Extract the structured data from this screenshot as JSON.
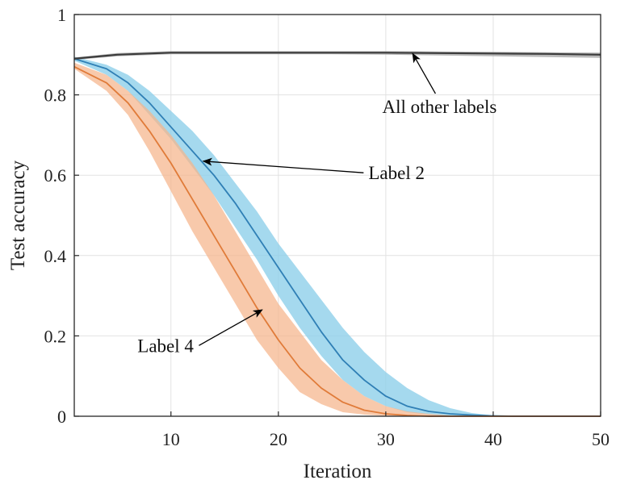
{
  "chart_data": {
    "type": "line",
    "xlabel": "Iteration",
    "ylabel": "Test accuracy",
    "xlim": [
      1,
      50
    ],
    "ylim": [
      0,
      1
    ],
    "xticks": [
      10,
      20,
      30,
      40,
      50
    ],
    "yticks": [
      0,
      0.2,
      0.4,
      0.6,
      0.8,
      1
    ],
    "xtick_labels": [
      "10",
      "20",
      "30",
      "40",
      "50"
    ],
    "ytick_labels": [
      "0",
      "0.2",
      "0.4",
      "0.6",
      "0.8",
      "1"
    ],
    "grid": true,
    "legend": "none",
    "series": [
      {
        "name": "All other labels",
        "color": "#3c3c3c",
        "band_color": "#a8a8a8",
        "x": [
          1,
          5,
          10,
          15,
          20,
          25,
          30,
          35,
          40,
          45,
          50
        ],
        "y": [
          0.89,
          0.9,
          0.905,
          0.905,
          0.905,
          0.905,
          0.905,
          0.904,
          0.903,
          0.902,
          0.9
        ],
        "lower": [
          0.887,
          0.896,
          0.901,
          0.901,
          0.901,
          0.901,
          0.9,
          0.898,
          0.896,
          0.894,
          0.892
        ],
        "upper": [
          0.893,
          0.904,
          0.909,
          0.909,
          0.909,
          0.909,
          0.909,
          0.908,
          0.907,
          0.906,
          0.905
        ]
      },
      {
        "name": "Label 2",
        "color": "#2f7fb5",
        "band_color": "#8fd0ea",
        "x": [
          1,
          4,
          6,
          8,
          10,
          12,
          14,
          16,
          18,
          20,
          22,
          24,
          26,
          28,
          30,
          32,
          34,
          36,
          38,
          40,
          42,
          44,
          46,
          48,
          50
        ],
        "y": [
          0.89,
          0.865,
          0.83,
          0.78,
          0.72,
          0.66,
          0.6,
          0.53,
          0.45,
          0.37,
          0.29,
          0.21,
          0.14,
          0.09,
          0.05,
          0.025,
          0.012,
          0.006,
          0.003,
          0.001,
          0.0,
          0.0,
          0.0,
          0.0,
          0.0
        ],
        "lower": [
          0.885,
          0.85,
          0.81,
          0.75,
          0.69,
          0.62,
          0.55,
          0.47,
          0.39,
          0.3,
          0.22,
          0.15,
          0.09,
          0.05,
          0.025,
          0.01,
          0.004,
          0.001,
          0.0,
          0.0,
          0.0,
          0.0,
          0.0,
          0.0,
          0.0
        ],
        "upper": [
          0.895,
          0.875,
          0.85,
          0.81,
          0.76,
          0.71,
          0.65,
          0.58,
          0.51,
          0.43,
          0.36,
          0.29,
          0.22,
          0.16,
          0.11,
          0.07,
          0.04,
          0.02,
          0.008,
          0.002,
          0.0,
          0.0,
          0.0,
          0.0,
          0.0
        ]
      },
      {
        "name": "Label 4",
        "color": "#e07b39",
        "band_color": "#f5b48a",
        "x": [
          1,
          4,
          6,
          8,
          10,
          12,
          14,
          16,
          18,
          20,
          22,
          24,
          26,
          28,
          30,
          32,
          34,
          36,
          38,
          40,
          42,
          44,
          46,
          48,
          50
        ],
        "y": [
          0.87,
          0.83,
          0.78,
          0.71,
          0.63,
          0.54,
          0.45,
          0.36,
          0.27,
          0.19,
          0.12,
          0.07,
          0.035,
          0.015,
          0.006,
          0.002,
          0.0,
          0.0,
          0.0,
          0.0,
          0.0,
          0.0,
          0.0,
          0.0,
          0.0
        ],
        "lower": [
          0.865,
          0.81,
          0.75,
          0.66,
          0.56,
          0.46,
          0.37,
          0.28,
          0.19,
          0.12,
          0.06,
          0.03,
          0.01,
          0.004,
          0.001,
          0.0,
          0.0,
          0.0,
          0.0,
          0.0,
          0.0,
          0.0,
          0.0,
          0.0,
          0.0
        ],
        "upper": [
          0.88,
          0.85,
          0.81,
          0.76,
          0.7,
          0.63,
          0.55,
          0.46,
          0.37,
          0.28,
          0.21,
          0.14,
          0.09,
          0.05,
          0.025,
          0.012,
          0.006,
          0.002,
          0.0,
          0.0,
          0.0,
          0.0,
          0.0,
          0.0,
          0.0
        ]
      }
    ],
    "annotations": [
      {
        "text": "All other labels",
        "target": [
          32.5,
          0.903
        ],
        "text_pos": [
          35,
          0.755
        ]
      },
      {
        "text": "Label 2",
        "target": [
          13,
          0.635
        ],
        "text_pos": [
          31,
          0.59
        ]
      },
      {
        "text": "Label 4",
        "target": [
          18.5,
          0.265
        ],
        "text_pos": [
          9.5,
          0.16
        ]
      }
    ]
  }
}
